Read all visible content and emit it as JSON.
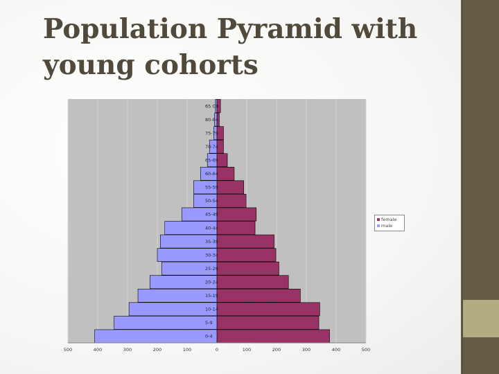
{
  "slide": {
    "title_line1": "Population Pyramid with",
    "title_line2": "young cohorts",
    "colors": {
      "sidebar": "#655c44",
      "sidebar_accent": "#b3ab82",
      "title": "#514a3c"
    }
  },
  "chart_data": {
    "type": "bar",
    "orientation": "horizontal",
    "title": "",
    "xlabel": "",
    "ylabel": "",
    "categories": [
      "65 OR",
      "80-84",
      "75-79",
      "70-74",
      "65-69",
      "60-64",
      "55-59",
      "50-54",
      "45-49",
      "40-44",
      "35-39",
      "30-34",
      "25-29",
      "20-24",
      "15-19",
      "10-14",
      "5-9",
      "0-4"
    ],
    "xlim": [
      -500,
      500
    ],
    "x_ticks": [
      "500",
      "400",
      "300",
      "200",
      "100",
      "0",
      "100",
      "200",
      "300",
      "400",
      "500"
    ],
    "grid": true,
    "legend_position": "right",
    "series": [
      {
        "name": "female",
        "color": "#993366",
        "values": [
          12,
          8,
          22,
          22,
          35,
          58,
          90,
          98,
          132,
          128,
          192,
          198,
          208,
          240,
          280,
          345,
          342,
          378
        ]
      },
      {
        "name": "male",
        "color": "#9999ff",
        "values": [
          -5,
          -8,
          -10,
          -25,
          -32,
          -55,
          -78,
          -78,
          -118,
          -175,
          -190,
          -200,
          -185,
          -225,
          -265,
          -295,
          -345,
          -410
        ]
      }
    ]
  }
}
